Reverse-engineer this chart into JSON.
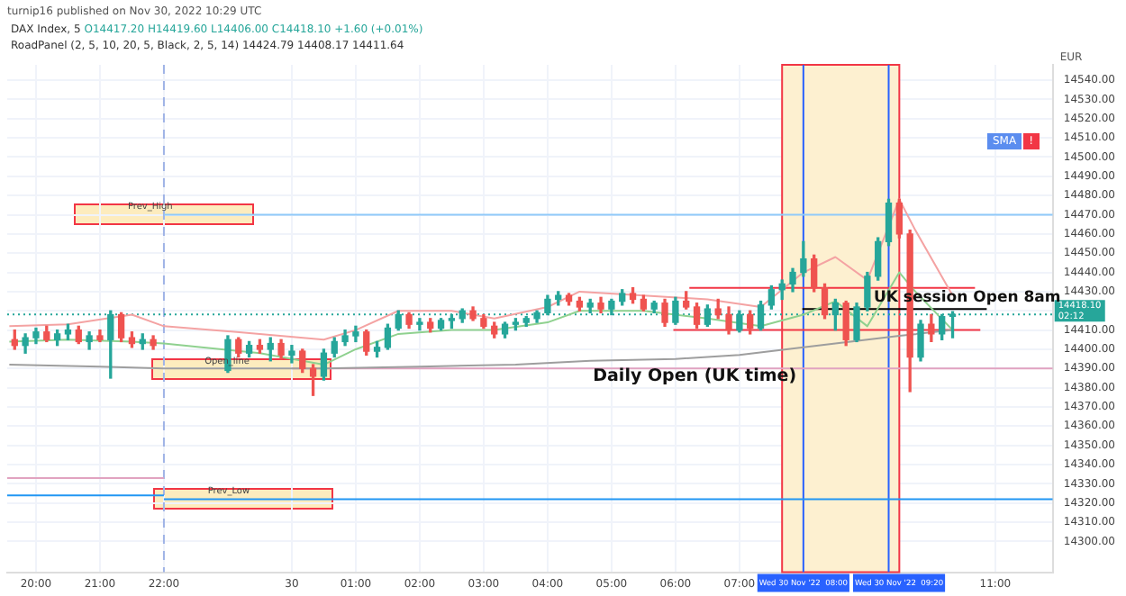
{
  "chart_data": {
    "type": "candlestick",
    "title": "DAX Index, 5",
    "ylabel": "EUR",
    "annotations": [
      "turnip16 published on Nov 30, 2022 10:29 UTC",
      "O14417.20 H14419.60 L14406.00 C14418.10 +1.60 (+0.01%)",
      "RoadPanel (2, 5, 10, 20, 5, Black, 2, 5, 14) 14424.79 14408.17 14411.64",
      "SMA",
      "!",
      {
        "text": "Prev_High",
        "x": "2022-11-29T22:00",
        "y": 14470
      },
      {
        "text": "Open_line",
        "x": "2022-11-29T23:12",
        "y": 14390
      },
      {
        "text": "Prev_Low",
        "x": "2022-11-29T23:15",
        "y": 14322
      },
      {
        "text": "UK session Open 8am",
        "x": "2022-11-30T09:06",
        "y": 14421
      },
      {
        "text": "Daily Open (UK time)",
        "x": "2022-11-30T06:18",
        "y": 14393
      }
    ],
    "x": [
      "2022-11-29T19:40",
      "2022-11-29T19:50",
      "2022-11-29T20:00",
      "2022-11-29T20:10",
      "2022-11-29T20:20",
      "2022-11-29T20:30",
      "2022-11-29T20:40",
      "2022-11-29T20:50",
      "2022-11-29T21:00",
      "2022-11-29T21:10",
      "2022-11-29T21:20",
      "2022-11-29T21:30",
      "2022-11-29T21:40",
      "2022-11-29T21:50",
      "2022-11-29T23:00",
      "2022-11-29T23:10",
      "2022-11-29T23:20",
      "2022-11-29T23:30",
      "2022-11-29T23:40",
      "2022-11-29T23:50",
      "2022-11-30T00:00",
      "2022-11-30T00:10",
      "2022-11-30T00:20",
      "2022-11-30T00:30",
      "2022-11-30T00:40",
      "2022-11-30T00:50",
      "2022-11-30T01:00",
      "2022-11-30T01:10",
      "2022-11-30T01:20",
      "2022-11-30T01:30",
      "2022-11-30T01:40",
      "2022-11-30T01:50",
      "2022-11-30T02:00",
      "2022-11-30T02:10",
      "2022-11-30T02:20",
      "2022-11-30T02:30",
      "2022-11-30T02:40",
      "2022-11-30T02:50",
      "2022-11-30T03:00",
      "2022-11-30T03:10",
      "2022-11-30T03:20",
      "2022-11-30T03:30",
      "2022-11-30T03:40",
      "2022-11-30T03:50",
      "2022-11-30T04:00",
      "2022-11-30T04:10",
      "2022-11-30T04:20",
      "2022-11-30T04:30",
      "2022-11-30T04:40",
      "2022-11-30T04:50",
      "2022-11-30T05:00",
      "2022-11-30T05:10",
      "2022-11-30T05:20",
      "2022-11-30T05:30",
      "2022-11-30T05:40",
      "2022-11-30T05:50",
      "2022-11-30T06:00",
      "2022-11-30T06:10",
      "2022-11-30T06:20",
      "2022-11-30T06:30",
      "2022-11-30T06:40",
      "2022-11-30T06:50",
      "2022-11-30T07:00",
      "2022-11-30T07:10",
      "2022-11-30T07:20",
      "2022-11-30T07:30",
      "2022-11-30T07:40",
      "2022-11-30T07:50",
      "2022-11-30T08:00",
      "2022-11-30T08:10",
      "2022-11-30T08:20",
      "2022-11-30T08:30",
      "2022-11-30T08:40",
      "2022-11-30T08:50",
      "2022-11-30T09:00",
      "2022-11-30T09:10",
      "2022-11-30T09:20",
      "2022-11-30T09:30",
      "2022-11-30T09:40",
      "2022-11-30T09:50",
      "2022-11-30T10:00",
      "2022-11-30T10:10",
      "2022-11-30T10:20"
    ],
    "ohlc": [
      [
        14405,
        14410,
        14400,
        14402
      ],
      [
        14402,
        14408,
        14398,
        14406
      ],
      [
        14406,
        14411,
        14403,
        14409
      ],
      [
        14409,
        14412,
        14404,
        14405
      ],
      [
        14405,
        14410,
        14402,
        14408
      ],
      [
        14408,
        14413,
        14405,
        14410
      ],
      [
        14410,
        14412,
        14403,
        14404
      ],
      [
        14404,
        14409,
        14400,
        14407
      ],
      [
        14407,
        14410,
        14404,
        14405
      ],
      [
        14405,
        14420,
        14385,
        14418
      ],
      [
        14418,
        14419,
        14404,
        14406
      ],
      [
        14406,
        14409,
        14401,
        14403
      ],
      [
        14403,
        14408,
        14400,
        14405
      ],
      [
        14405,
        14407,
        14400,
        14402
      ],
      [
        14389,
        14407,
        14388,
        14405
      ],
      [
        14405,
        14406,
        14396,
        14398
      ],
      [
        14398,
        14404,
        14396,
        14402
      ],
      [
        14402,
        14405,
        14398,
        14400
      ],
      [
        14400,
        14406,
        14394,
        14403
      ],
      [
        14403,
        14405,
        14395,
        14397
      ],
      [
        14397,
        14402,
        14393,
        14399
      ],
      [
        14399,
        14400,
        14388,
        14390
      ],
      [
        14390,
        14392,
        14376,
        14386
      ],
      [
        14386,
        14400,
        14384,
        14398
      ],
      [
        14398,
        14406,
        14396,
        14404
      ],
      [
        14404,
        14410,
        14402,
        14407
      ],
      [
        14407,
        14412,
        14404,
        14409
      ],
      [
        14409,
        14410,
        14397,
        14399
      ],
      [
        14399,
        14404,
        14396,
        14401
      ],
      [
        14401,
        14413,
        14400,
        14411
      ],
      [
        14411,
        14420,
        14410,
        14418
      ],
      [
        14418,
        14419,
        14411,
        14413
      ],
      [
        14413,
        14416,
        14410,
        14414
      ],
      [
        14414,
        14416,
        14409,
        14411
      ],
      [
        14411,
        14416,
        14410,
        14415
      ],
      [
        14415,
        14418,
        14411,
        14416
      ],
      [
        14416,
        14421,
        14414,
        14420
      ],
      [
        14420,
        14422,
        14415,
        14416
      ],
      [
        14416,
        14418,
        14411,
        14412
      ],
      [
        14412,
        14414,
        14406,
        14408
      ],
      [
        14408,
        14414,
        14406,
        14413
      ],
      [
        14413,
        14416,
        14410,
        14414
      ],
      [
        14414,
        14417,
        14412,
        14416
      ],
      [
        14416,
        14420,
        14414,
        14419
      ],
      [
        14419,
        14428,
        14418,
        14426
      ],
      [
        14426,
        14430,
        14423,
        14428
      ],
      [
        14428,
        14429,
        14423,
        14425
      ],
      [
        14425,
        14427,
        14420,
        14422
      ],
      [
        14422,
        14426,
        14419,
        14424
      ],
      [
        14424,
        14427,
        14419,
        14421
      ],
      [
        14421,
        14426,
        14418,
        14425
      ],
      [
        14425,
        14431,
        14423,
        14429
      ],
      [
        14429,
        14432,
        14424,
        14426
      ],
      [
        14426,
        14428,
        14420,
        14421
      ],
      [
        14421,
        14425,
        14419,
        14424
      ],
      [
        14424,
        14426,
        14412,
        14414
      ],
      [
        14414,
        14427,
        14413,
        14425
      ],
      [
        14425,
        14430,
        14421,
        14422
      ],
      [
        14422,
        14424,
        14411,
        14413
      ],
      [
        14413,
        14423,
        14412,
        14421
      ],
      [
        14421,
        14426,
        14416,
        14418
      ],
      [
        14418,
        14422,
        14408,
        14410
      ],
      [
        14410,
        14420,
        14409,
        14418
      ],
      [
        14418,
        14420,
        14408,
        14411
      ],
      [
        14411,
        14425,
        14410,
        14423
      ],
      [
        14423,
        14433,
        14421,
        14431
      ],
      [
        14431,
        14436,
        14426,
        14434
      ],
      [
        14434,
        14442,
        14430,
        14440
      ],
      [
        14440,
        14456,
        14438,
        14447
      ],
      [
        14447,
        14449,
        14430,
        14432
      ],
      [
        14432,
        14434,
        14416,
        14418
      ],
      [
        14418,
        14426,
        14410,
        14424
      ],
      [
        14424,
        14425,
        14402,
        14405
      ],
      [
        14405,
        14424,
        14404,
        14422
      ],
      [
        14422,
        14440,
        14420,
        14438
      ],
      [
        14438,
        14458,
        14436,
        14456
      ],
      [
        14456,
        14478,
        14454,
        14476
      ],
      [
        14476,
        14478,
        14458,
        14460
      ],
      [
        14460,
        14462,
        14378,
        14396
      ],
      [
        14396,
        14415,
        14394,
        14413
      ],
      [
        14413,
        14418,
        14404,
        14408
      ],
      [
        14408,
        14418,
        14405,
        14417
      ],
      [
        14417.2,
        14419.6,
        14406,
        14418.1
      ]
    ],
    "colors": [
      "#ef5350",
      "#26a69a",
      "#26a69a",
      "#ef5350",
      "#26a69a",
      "#26a69a",
      "#ef5350",
      "#26a69a",
      "#ef5350",
      "#26a69a",
      "#ef5350",
      "#ef5350",
      "#26a69a",
      "#ef5350",
      "#26a69a",
      "#ef5350",
      "#26a69a",
      "#ef5350",
      "#26a69a",
      "#ef5350",
      "#26a69a",
      "#ef5350",
      "#ef5350",
      "#26a69a",
      "#26a69a",
      "#26a69a",
      "#26a69a",
      "#ef5350",
      "#26a69a",
      "#26a69a",
      "#26a69a",
      "#ef5350",
      "#26a69a",
      "#ef5350",
      "#26a69a",
      "#26a69a",
      "#26a69a",
      "#ef5350",
      "#ef5350",
      "#ef5350",
      "#26a69a",
      "#26a69a",
      "#26a69a",
      "#26a69a",
      "#26a69a",
      "#26a69a",
      "#ef5350",
      "#ef5350",
      "#26a69a",
      "#ef5350",
      "#26a69a",
      "#26a69a",
      "#ef5350",
      "#ef5350",
      "#26a69a",
      "#ef5350",
      "#26a69a",
      "#ef5350",
      "#ef5350",
      "#26a69a",
      "#ef5350",
      "#ef5350",
      "#26a69a",
      "#ef5350",
      "#26a69a",
      "#26a69a",
      "#26a69a",
      "#26a69a",
      "#26a69a",
      "#ef5350",
      "#ef5350",
      "#26a69a",
      "#ef5350",
      "#26a69a",
      "#26a69a",
      "#26a69a",
      "#26a69a",
      "#ef5350",
      "#ef5350",
      "#26a69a",
      "#ef5350",
      "#26a69a",
      "#26a69a"
    ],
    "series": [
      {
        "type": "line",
        "color": "#9e9e9e",
        "x": [
          "2022-11-29T19:35",
          "2022-11-29T21:00",
          "2022-11-29T22:00",
          "2022-11-29T23:00",
          "2022-11-30T00:30",
          "2022-11-30T02:00",
          "2022-11-30T03:30",
          "2022-11-30T04:40",
          "2022-11-30T06:00",
          "2022-11-30T07:00",
          "2022-11-30T08:30",
          "2022-11-30T09:30",
          "2022-11-30T10:20"
        ],
        "values": [
          14392,
          14391,
          14390,
          14390,
          14390,
          14391,
          14392,
          14394,
          14395,
          14397,
          14403,
          14407,
          14410
        ]
      },
      {
        "type": "line",
        "color": "#f4a3a3",
        "x": [
          "2022-11-29T19:35",
          "2022-11-29T20:30",
          "2022-11-29T21:30",
          "2022-11-29T22:00",
          "2022-11-29T23:30",
          "2022-11-30T00:30",
          "2022-11-30T01:00",
          "2022-11-30T01:40",
          "2022-11-30T02:30",
          "2022-11-30T03:10",
          "2022-11-30T04:00",
          "2022-11-30T04:30",
          "2022-11-30T05:30",
          "2022-11-30T06:30",
          "2022-11-30T07:20",
          "2022-11-30T08:00",
          "2022-11-30T08:30",
          "2022-11-30T09:00",
          "2022-11-30T09:30",
          "2022-11-30T09:45",
          "2022-11-30T10:20"
        ],
        "values": [
          14412,
          14413,
          14418,
          14412,
          14408,
          14405,
          14410,
          14420,
          14420,
          14416,
          14422,
          14430,
          14428,
          14426,
          14422,
          14440,
          14448,
          14436,
          14478,
          14462,
          14428
        ]
      },
      {
        "type": "line",
        "color": "#8fd18f",
        "x": [
          "2022-11-29T19:35",
          "2022-11-29T20:30",
          "2022-11-29T21:30",
          "2022-11-29T22:00",
          "2022-11-29T23:30",
          "2022-11-30T00:30",
          "2022-11-30T01:00",
          "2022-11-30T01:40",
          "2022-11-30T02:30",
          "2022-11-30T03:10",
          "2022-11-30T04:00",
          "2022-11-30T04:30",
          "2022-11-30T05:30",
          "2022-11-30T06:30",
          "2022-11-30T07:20",
          "2022-11-30T08:00",
          "2022-11-30T08:30",
          "2022-11-30T09:00",
          "2022-11-30T09:30",
          "2022-11-30T09:45",
          "2022-11-30T10:20"
        ],
        "values": [
          14404,
          14405,
          14404,
          14403,
          14398,
          14392,
          14400,
          14408,
          14410,
          14410,
          14414,
          14420,
          14420,
          14416,
          14412,
          14418,
          14425,
          14412,
          14440,
          14430,
          14410
        ]
      },
      {
        "type": "line",
        "color": "#2196f3",
        "x": [
          "2022-11-29T19:33",
          "2022-11-29T22:00"
        ],
        "values": [
          14324,
          14324
        ]
      },
      {
        "type": "line",
        "color": "#e1a3c0",
        "x": [
          "2022-11-29T19:33",
          "2022-11-29T22:00"
        ],
        "values": [
          14333,
          14333
        ]
      },
      {
        "type": "line",
        "color": "#90caf9",
        "x": [
          "2022-11-29T22:00",
          "2022-11-30T11:54"
        ],
        "values": [
          14470,
          14470
        ]
      },
      {
        "type": "line",
        "color": "#2196f3",
        "x": [
          "2022-11-29T22:00",
          "2022-11-30T11:54"
        ],
        "values": [
          14322,
          14322
        ]
      },
      {
        "type": "line",
        "color": "#e1a3c0",
        "x": [
          "2022-11-30T00:00",
          "2022-11-30T11:54"
        ],
        "values": [
          14390,
          14390
        ]
      },
      {
        "type": "line",
        "color": "#f23645",
        "x": [
          "2022-11-30T06:13",
          "2022-11-30T10:41"
        ],
        "values": [
          14432,
          14432
        ]
      },
      {
        "type": "line",
        "color": "#f23645",
        "x": [
          "2022-11-30T05:58",
          "2022-11-30T10:46"
        ],
        "values": [
          14410,
          14410
        ]
      },
      {
        "type": "line",
        "color": "#000000",
        "x": [
          "2022-11-30T07:59",
          "2022-11-30T10:52"
        ],
        "values": [
          14421,
          14421
        ]
      }
    ],
    "ref_lines": [
      {
        "axis": "x",
        "value": "2022-11-29T22:00",
        "color": "#9fb3e6",
        "line_style": "dashed"
      },
      {
        "axis": "x",
        "value": "2022-11-30T08:00",
        "label": "Wed 30 Nov '22  08:00",
        "color": "#2962ff",
        "line_style": "solid"
      },
      {
        "axis": "x",
        "value": "2022-11-30T09:20",
        "label": "Wed 30 Nov '22  09:20",
        "color": "#2962ff",
        "line_style": "solid"
      },
      {
        "axis": "y",
        "value": 14418.1,
        "label": "14418.10 02:12",
        "color": "#26a69a",
        "line_style": "dotted"
      }
    ],
    "bands": [
      {
        "axis": "x",
        "from": "2022-11-30T07:40",
        "to": "2022-11-30T09:30",
        "color": "#fdf0d0"
      }
    ],
    "xlim": [
      "2022-11-29T19:33",
      "2022-11-30T11:54"
    ],
    "ylim": [
      14284,
      14548
    ],
    "xticks": [
      {
        "value": "2022-11-29T20:00",
        "label": "20:00"
      },
      {
        "value": "2022-11-29T21:00",
        "label": "21:00"
      },
      {
        "value": "2022-11-29T22:00",
        "label": "22:00"
      },
      {
        "value": "2022-11-30T00:00",
        "label": "30"
      },
      {
        "value": "2022-11-30T01:00",
        "label": "01:00"
      },
      {
        "value": "2022-11-30T02:00",
        "label": "02:00"
      },
      {
        "value": "2022-11-30T03:00",
        "label": "03:00"
      },
      {
        "value": "2022-11-30T04:00",
        "label": "04:00"
      },
      {
        "value": "2022-11-30T05:00",
        "label": "05:00"
      },
      {
        "value": "2022-11-30T06:00",
        "label": "06:00"
      },
      {
        "value": "2022-11-30T07:00",
        "label": "07:00"
      },
      {
        "value": "2022-11-30T11:00",
        "label": "11:00"
      }
    ],
    "yticks": [
      {
        "value": 14300,
        "label": "14300.00"
      },
      {
        "value": 14310,
        "label": "14310.00"
      },
      {
        "value": 14320,
        "label": "14320.00"
      },
      {
        "value": 14330,
        "label": "14330.00"
      },
      {
        "value": 14340,
        "label": "14340.00"
      },
      {
        "value": 14350,
        "label": "14350.00"
      },
      {
        "value": 14360,
        "label": "14360.00"
      },
      {
        "value": 14370,
        "label": "14370.00"
      },
      {
        "value": 14380,
        "label": "14380.00"
      },
      {
        "value": 14390,
        "label": "14390.00"
      },
      {
        "value": 14400,
        "label": "14400.00"
      },
      {
        "value": 14410,
        "label": "14410.00"
      },
      {
        "value": 14420,
        "label": null
      },
      {
        "value": 14430,
        "label": "14430.00"
      },
      {
        "value": 14440,
        "label": "14440.00"
      },
      {
        "value": 14450,
        "label": "14450.00"
      },
      {
        "value": 14460,
        "label": "14460.00"
      },
      {
        "value": 14470,
        "label": "14470.00"
      },
      {
        "value": 14480,
        "label": "14480.00"
      },
      {
        "value": 14490,
        "label": "14490.00"
      },
      {
        "value": 14500,
        "label": "14500.00"
      },
      {
        "value": 14510,
        "label": "14510.00"
      },
      {
        "value": 14520,
        "label": "14520.00"
      },
      {
        "value": 14530,
        "label": "14530.00"
      },
      {
        "value": 14540,
        "label": "14540.00"
      }
    ],
    "grid": true
  }
}
